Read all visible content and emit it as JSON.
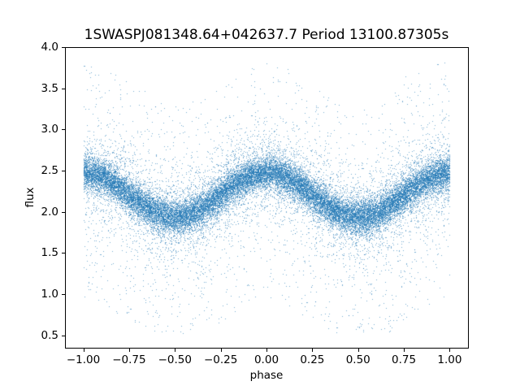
{
  "chart_data": {
    "type": "scatter",
    "title": "1SWASPJ081348.64+042637.7 Period 13100.87305s",
    "xlabel": "phase",
    "ylabel": "flux",
    "xlim": [
      -1.1,
      1.1
    ],
    "ylim": [
      0.35,
      4.0
    ],
    "grid": false,
    "legend": "none",
    "x_ticks": {
      "values": [
        -1.0,
        -0.75,
        -0.5,
        -0.25,
        0.0,
        0.25,
        0.5,
        0.75,
        1.0
      ],
      "labels": [
        "−1.00",
        "−0.75",
        "−0.50",
        "−0.25",
        "0.00",
        "0.25",
        "0.50",
        "0.75",
        "1.00"
      ]
    },
    "y_ticks": {
      "values": [
        0.5,
        1.0,
        1.5,
        2.0,
        2.5,
        3.0,
        3.5,
        4.0
      ],
      "labels": [
        "0.5",
        "1.0",
        "1.5",
        "2.0",
        "2.5",
        "3.0",
        "3.5",
        "4.0"
      ]
    },
    "marker_color": "#1f77b4",
    "marker_alpha": 0.6,
    "marker_size_px": 1,
    "n_points": 30000,
    "series_model": {
      "description": "phase-folded sinusoidal light curve; flux(phase) = mean + amplitude * cos(2*pi*phase) + noise; data duplicated over phase -1..1",
      "phase_range": [
        -1.0,
        1.0
      ],
      "mean_flux": 2.21,
      "amplitude": 0.27,
      "peak_flux": 2.48,
      "peak_at_phase": [
        0.0,
        -1.0,
        1.0
      ],
      "trough_flux": 1.94,
      "trough_at_phase": [
        -0.5,
        0.5
      ],
      "flux_observed_min": 0.55,
      "flux_observed_max": 3.85,
      "noise_mix": [
        {
          "frac": 0.74,
          "type": "gauss",
          "sigma": 0.1
        },
        {
          "frac": 0.16,
          "type": "gauss",
          "sigma": 0.25
        },
        {
          "frac": 0.06,
          "type": "gauss",
          "sigma": 0.45
        },
        {
          "frac": 0.025,
          "type": "tail-down",
          "range": [
            0.15,
            1.55
          ]
        },
        {
          "frac": 0.015,
          "type": "tail-up",
          "range": [
            0.15,
            1.35
          ]
        }
      ],
      "flux_clip": [
        0.53,
        3.86
      ],
      "seed": 42
    }
  }
}
